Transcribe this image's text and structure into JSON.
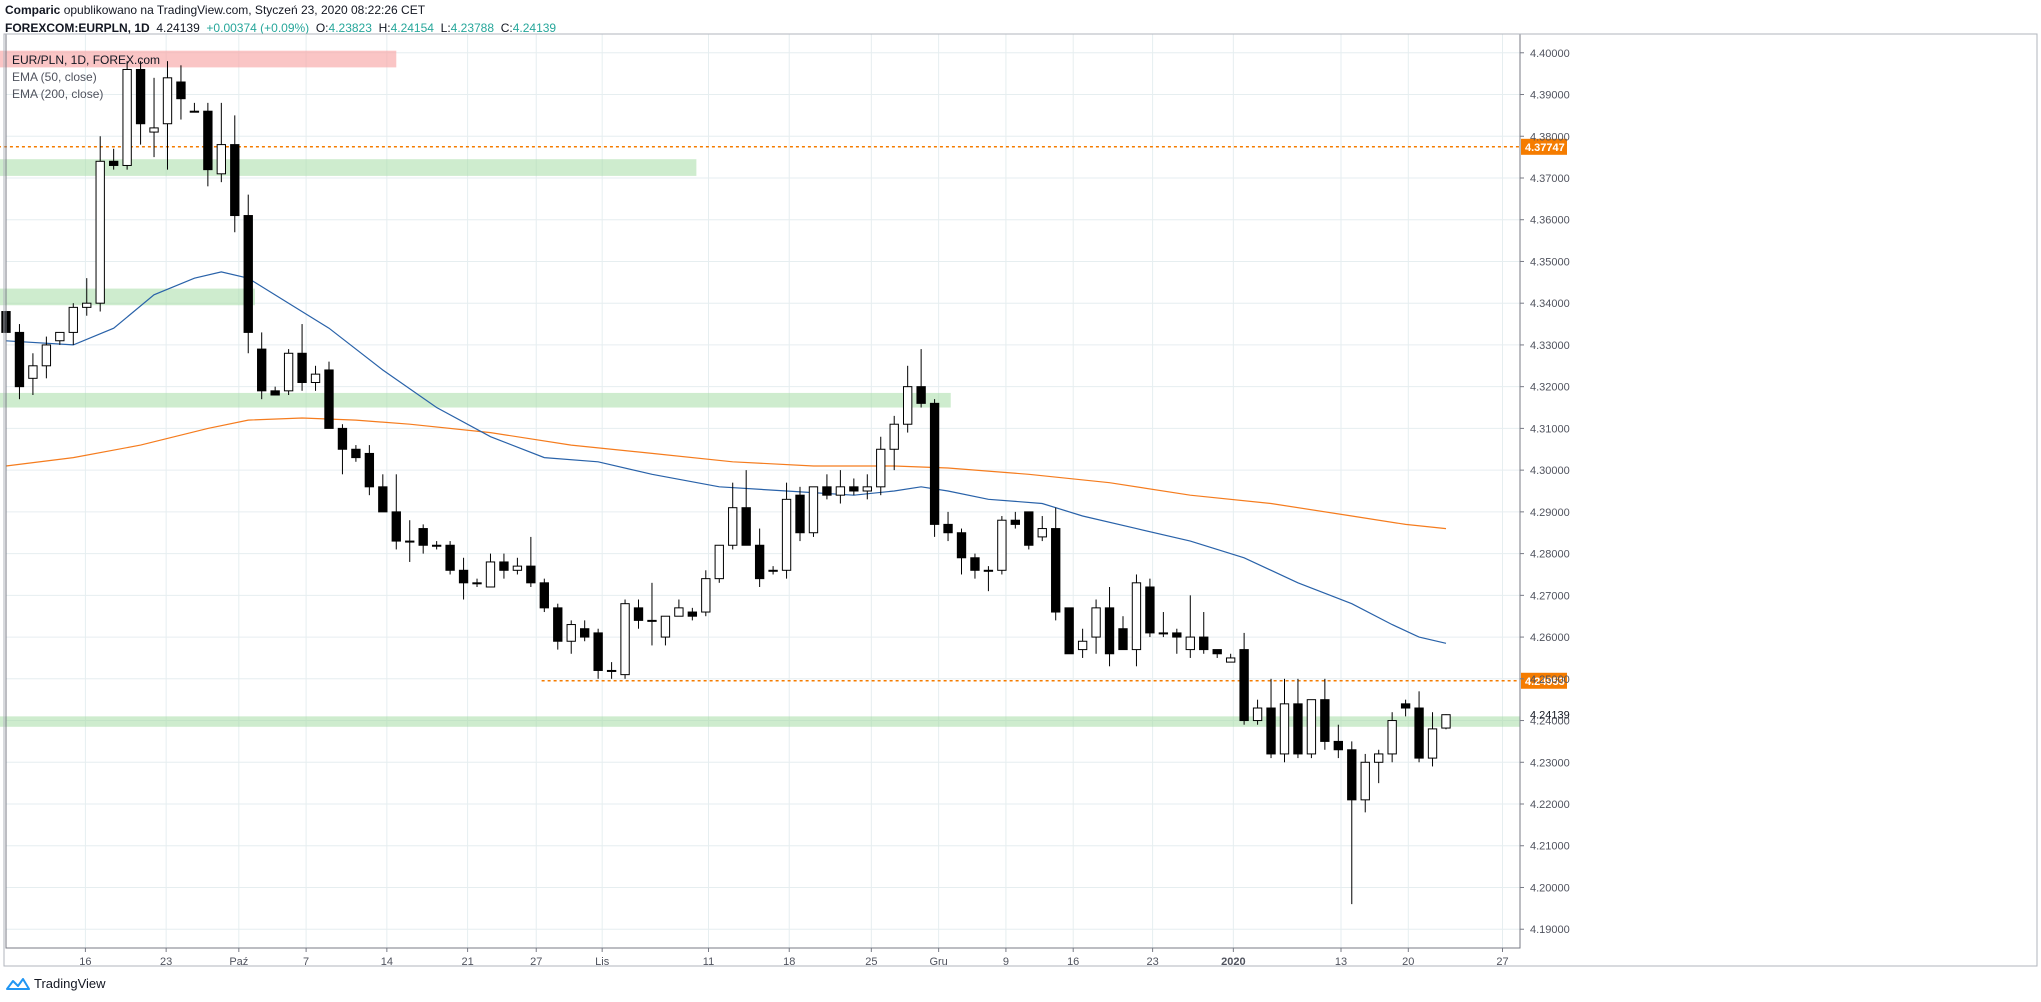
{
  "header": {
    "author": "Comparic",
    "published_text": "opublikowano na TradingView.com, Styczeń 23, 2020 08:22:26 CET",
    "symbol": "FOREXCOM:EURPLN, 1D",
    "last": "4.24139",
    "change": "+0.00374 (+0.09%)",
    "o_label": "O:",
    "o_value": "4.23823",
    "h_label": "H:",
    "h_value": "4.24154",
    "l_label": "L:",
    "l_value": "4.23788",
    "c_label": "C:",
    "c_value": "4.24139"
  },
  "legend": {
    "title": "EUR/PLN, 1D, FOREX.com",
    "ema50": "EMA (50, close)",
    "ema200": "EMA (200, close)"
  },
  "branding": {
    "label": "TradingView"
  },
  "colors": {
    "up_body": "#ffffff",
    "down_body": "#000000",
    "wick": "#000000",
    "ema50": "#2962a9",
    "ema200": "#f57c1e",
    "zone_green": "#a5dca5",
    "zone_red": "#f7a6a6",
    "level_line": "#f57c00",
    "grid": "#e6eef0",
    "axis_text": "#50535e"
  },
  "chart_data": {
    "type": "candlestick",
    "title": "EUR/PLN, 1D, FOREX.com",
    "x_ticks": [
      {
        "label": "16",
        "x": 5.9
      },
      {
        "label": "23",
        "x": 11.9
      },
      {
        "label": "Paź",
        "x": 17.3
      },
      {
        "label": "7",
        "x": 22.3
      },
      {
        "label": "14",
        "x": 28.3
      },
      {
        "label": "21",
        "x": 34.3
      },
      {
        "label": "27",
        "x": 39.4
      },
      {
        "label": "Lis",
        "x": 44.3
      },
      {
        "label": "11",
        "x": 52.2
      },
      {
        "label": "18",
        "x": 58.2
      },
      {
        "label": "25",
        "x": 64.3
      },
      {
        "label": "Gru",
        "x": 69.3
      },
      {
        "label": "9",
        "x": 74.3
      },
      {
        "label": "16",
        "x": 79.3
      },
      {
        "label": "23",
        "x": 85.2
      },
      {
        "label": "2020",
        "x": 91.2
      },
      {
        "label": "13",
        "x": 99.2
      },
      {
        "label": "20",
        "x": 104.2
      },
      {
        "label": "27",
        "x": 111.2
      }
    ],
    "x_range": [
      0,
      112.5
    ],
    "y_ticks": [
      "4.40000",
      "4.39000",
      "4.38000",
      "4.37000",
      "4.36000",
      "4.35000",
      "4.34000",
      "4.33000",
      "4.32000",
      "4.31000",
      "4.30000",
      "4.29000",
      "4.28000",
      "4.27000",
      "4.26000",
      "4.25000",
      "4.24000",
      "4.23000",
      "4.22000",
      "4.21000",
      "4.20000",
      "4.19000"
    ],
    "ylim": [
      4.1855,
      4.4045
    ],
    "candles": [
      [
        0.0,
        4.338,
        4.35,
        4.326,
        4.333
      ],
      [
        1.0,
        4.333,
        4.335,
        4.317,
        4.32
      ],
      [
        2.0,
        4.322,
        4.328,
        4.318,
        4.325
      ],
      [
        3.0,
        4.325,
        4.332,
        4.322,
        4.33
      ],
      [
        4.0,
        4.331,
        4.333,
        4.33,
        4.333
      ],
      [
        5.0,
        4.333,
        4.34,
        4.33,
        4.339
      ],
      [
        6.0,
        4.339,
        4.346,
        4.337,
        4.34
      ],
      [
        7.0,
        4.34,
        4.38,
        4.338,
        4.374
      ],
      [
        8.0,
        4.374,
        4.377,
        4.372,
        4.373
      ],
      [
        9.0,
        4.373,
        4.398,
        4.372,
        4.396
      ],
      [
        10.0,
        4.396,
        4.398,
        4.378,
        4.383
      ],
      [
        11.0,
        4.381,
        4.394,
        4.375,
        4.382
      ],
      [
        12.0,
        4.383,
        4.398,
        4.372,
        4.394
      ],
      [
        13.0,
        4.393,
        4.397,
        4.384,
        4.389
      ],
      [
        14.0,
        4.386,
        4.388,
        4.386,
        4.386
      ],
      [
        15.0,
        4.386,
        4.388,
        4.368,
        4.372
      ],
      [
        16.0,
        4.371,
        4.388,
        4.369,
        4.378
      ],
      [
        17.0,
        4.378,
        4.385,
        4.357,
        4.361
      ],
      [
        18.0,
        4.361,
        4.366,
        4.328,
        4.333
      ],
      [
        19.0,
        4.329,
        4.333,
        4.317,
        4.319
      ],
      [
        20.0,
        4.319,
        4.32,
        4.318,
        4.318
      ],
      [
        21.0,
        4.319,
        4.329,
        4.318,
        4.328
      ],
      [
        22.0,
        4.328,
        4.335,
        4.319,
        4.321
      ],
      [
        23.0,
        4.321,
        4.325,
        4.319,
        4.323
      ],
      [
        24.0,
        4.324,
        4.326,
        4.31,
        4.31
      ],
      [
        25.0,
        4.31,
        4.311,
        4.299,
        4.305
      ],
      [
        26.0,
        4.305,
        4.306,
        4.302,
        4.303
      ],
      [
        27.0,
        4.304,
        4.306,
        4.294,
        4.296
      ],
      [
        28.0,
        4.296,
        4.299,
        4.29,
        4.29
      ],
      [
        29.0,
        4.29,
        4.299,
        4.281,
        4.283
      ],
      [
        30.0,
        4.283,
        4.288,
        4.278,
        4.283
      ],
      [
        31.0,
        4.286,
        4.287,
        4.28,
        4.282
      ],
      [
        32.0,
        4.282,
        4.283,
        4.281,
        4.282
      ],
      [
        33.0,
        4.282,
        4.283,
        4.275,
        4.276
      ],
      [
        34.0,
        4.276,
        4.279,
        4.269,
        4.273
      ],
      [
        35.0,
        4.273,
        4.274,
        4.272,
        4.273
      ],
      [
        36.0,
        4.272,
        4.28,
        4.272,
        4.278
      ],
      [
        37.0,
        4.278,
        4.28,
        4.274,
        4.276
      ],
      [
        38.0,
        4.276,
        4.279,
        4.275,
        4.277
      ],
      [
        39.0,
        4.277,
        4.284,
        4.272,
        4.273
      ],
      [
        40.0,
        4.273,
        4.274,
        4.266,
        4.267
      ],
      [
        41.0,
        4.267,
        4.268,
        4.257,
        4.259
      ],
      [
        42.0,
        4.259,
        4.264,
        4.256,
        4.263
      ],
      [
        43.0,
        4.262,
        4.264,
        4.259,
        4.26
      ],
      [
        44.0,
        4.261,
        4.262,
        4.25,
        4.252
      ],
      [
        45.0,
        4.252,
        4.254,
        4.25,
        4.252
      ],
      [
        46.0,
        4.251,
        4.269,
        4.25,
        4.268
      ],
      [
        47.0,
        4.267,
        4.269,
        4.262,
        4.264
      ],
      [
        48.0,
        4.264,
        4.273,
        4.258,
        4.264
      ],
      [
        49.0,
        4.26,
        4.265,
        4.258,
        4.265
      ],
      [
        50.0,
        4.265,
        4.269,
        4.265,
        4.267
      ],
      [
        51.0,
        4.266,
        4.267,
        4.264,
        4.265
      ],
      [
        52.0,
        4.266,
        4.276,
        4.265,
        4.274
      ],
      [
        53.0,
        4.274,
        4.282,
        4.273,
        4.282
      ],
      [
        54.0,
        4.282,
        4.297,
        4.281,
        4.291
      ],
      [
        55.0,
        4.291,
        4.3,
        4.282,
        4.282
      ],
      [
        56.0,
        4.282,
        4.286,
        4.272,
        4.274
      ],
      [
        57.0,
        4.276,
        4.277,
        4.275,
        4.276
      ],
      [
        58.0,
        4.276,
        4.297,
        4.274,
        4.293
      ],
      [
        59.0,
        4.294,
        4.296,
        4.283,
        4.285
      ],
      [
        60.0,
        4.285,
        4.296,
        4.284,
        4.296
      ],
      [
        61.0,
        4.296,
        4.299,
        4.293,
        4.294
      ],
      [
        62.0,
        4.294,
        4.3,
        4.292,
        4.296
      ],
      [
        63.0,
        4.296,
        4.298,
        4.294,
        4.295
      ],
      [
        64.0,
        4.295,
        4.299,
        4.293,
        4.296
      ],
      [
        65.0,
        4.296,
        4.308,
        4.294,
        4.305
      ],
      [
        66.0,
        4.305,
        4.313,
        4.3,
        4.311
      ],
      [
        67.0,
        4.311,
        4.325,
        4.309,
        4.32
      ],
      [
        68.0,
        4.32,
        4.329,
        4.315,
        4.316
      ],
      [
        69.0,
        4.316,
        4.317,
        4.284,
        4.287
      ],
      [
        70.0,
        4.287,
        4.29,
        4.283,
        4.285
      ],
      [
        71.0,
        4.285,
        4.286,
        4.275,
        4.279
      ],
      [
        72.0,
        4.279,
        4.28,
        4.274,
        4.276
      ],
      [
        73.0,
        4.276,
        4.277,
        4.271,
        4.276
      ],
      [
        74.0,
        4.276,
        4.289,
        4.275,
        4.288
      ],
      [
        75.0,
        4.288,
        4.29,
        4.286,
        4.287
      ],
      [
        76.0,
        4.29,
        4.29,
        4.281,
        4.282
      ],
      [
        77.0,
        4.284,
        4.289,
        4.283,
        4.286
      ],
      [
        78.0,
        4.286,
        4.291,
        4.264,
        4.266
      ],
      [
        79.0,
        4.267,
        4.267,
        4.256,
        4.256
      ],
      [
        80.0,
        4.257,
        4.262,
        4.255,
        4.259
      ],
      [
        81.0,
        4.26,
        4.269,
        4.256,
        4.267
      ],
      [
        82.0,
        4.267,
        4.272,
        4.253,
        4.256
      ],
      [
        83.0,
        4.262,
        4.265,
        4.257,
        4.257
      ],
      [
        84.0,
        4.257,
        4.275,
        4.253,
        4.273
      ],
      [
        85.0,
        4.272,
        4.274,
        4.26,
        4.261
      ],
      [
        86.0,
        4.261,
        4.266,
        4.26,
        4.261
      ],
      [
        87.0,
        4.261,
        4.262,
        4.256,
        4.26
      ],
      [
        88.0,
        4.257,
        4.27,
        4.255,
        4.26
      ],
      [
        89.0,
        4.26,
        4.266,
        4.256,
        4.257
      ],
      [
        90.0,
        4.257,
        4.257,
        4.255,
        4.256
      ],
      [
        91.0,
        4.254,
        4.256,
        4.254,
        4.255
      ],
      [
        92.0,
        4.257,
        4.261,
        4.239,
        4.24
      ],
      [
        93.0,
        4.24,
        4.245,
        4.239,
        4.243
      ],
      [
        94.0,
        4.243,
        4.25,
        4.231,
        4.232
      ],
      [
        95.0,
        4.232,
        4.25,
        4.23,
        4.244
      ],
      [
        96.0,
        4.244,
        4.25,
        4.231,
        4.232
      ],
      [
        97.0,
        4.232,
        4.245,
        4.231,
        4.245
      ],
      [
        98.0,
        4.245,
        4.25,
        4.233,
        4.235
      ],
      [
        99.0,
        4.235,
        4.239,
        4.231,
        4.233
      ],
      [
        100.0,
        4.233,
        4.235,
        4.196,
        4.221
      ],
      [
        101.0,
        4.221,
        4.232,
        4.218,
        4.23
      ],
      [
        102.0,
        4.23,
        4.233,
        4.225,
        4.232
      ],
      [
        103.0,
        4.232,
        4.242,
        4.23,
        4.24
      ],
      [
        104.0,
        4.244,
        4.245,
        4.241,
        4.243
      ],
      [
        105.0,
        4.243,
        4.247,
        4.23,
        4.231
      ],
      [
        106.0,
        4.231,
        4.242,
        4.229,
        4.238
      ],
      [
        107.0,
        4.2382,
        4.2415,
        4.2379,
        4.2414
      ]
    ],
    "ema50": [
      [
        0,
        4.331
      ],
      [
        5,
        4.33
      ],
      [
        8,
        4.334
      ],
      [
        11,
        4.342
      ],
      [
        14,
        4.346
      ],
      [
        16,
        4.3475
      ],
      [
        18,
        4.346
      ],
      [
        21,
        4.34
      ],
      [
        24,
        4.334
      ],
      [
        28,
        4.324
      ],
      [
        32,
        4.315
      ],
      [
        36,
        4.308
      ],
      [
        40,
        4.303
      ],
      [
        44,
        4.302
      ],
      [
        48,
        4.299
      ],
      [
        53,
        4.296
      ],
      [
        58,
        4.295
      ],
      [
        63,
        4.294
      ],
      [
        66,
        4.295
      ],
      [
        68,
        4.296
      ],
      [
        70,
        4.295
      ],
      [
        73,
        4.293
      ],
      [
        77,
        4.292
      ],
      [
        80,
        4.289
      ],
      [
        84,
        4.286
      ],
      [
        88,
        4.283
      ],
      [
        92,
        4.279
      ],
      [
        96,
        4.273
      ],
      [
        100,
        4.268
      ],
      [
        103,
        4.263
      ],
      [
        105,
        4.26
      ],
      [
        107,
        4.2585
      ]
    ],
    "ema200": [
      [
        0,
        4.301
      ],
      [
        5,
        4.303
      ],
      [
        10,
        4.306
      ],
      [
        15,
        4.31
      ],
      [
        18,
        4.312
      ],
      [
        22,
        4.3125
      ],
      [
        26,
        4.312
      ],
      [
        30,
        4.311
      ],
      [
        36,
        4.309
      ],
      [
        42,
        4.306
      ],
      [
        48,
        4.304
      ],
      [
        54,
        4.302
      ],
      [
        60,
        4.301
      ],
      [
        66,
        4.301
      ],
      [
        70,
        4.3005
      ],
      [
        76,
        4.299
      ],
      [
        82,
        4.297
      ],
      [
        88,
        4.294
      ],
      [
        94,
        4.292
      ],
      [
        100,
        4.289
      ],
      [
        104,
        4.287
      ],
      [
        107,
        4.286
      ]
    ],
    "zones": [
      {
        "color": "red",
        "x0": -0.6,
        "x1": 29.0,
        "y0": 4.3965,
        "y1": 4.4005
      },
      {
        "color": "green",
        "x0": -0.6,
        "x1": 51.3,
        "y0": 4.3705,
        "y1": 4.3745
      },
      {
        "color": "green",
        "x0": -0.6,
        "x1": 18.5,
        "y0": 4.3395,
        "y1": 4.3435
      },
      {
        "color": "green",
        "x0": -0.6,
        "x1": 70.2,
        "y0": 4.315,
        "y1": 4.3185
      },
      {
        "color": "green",
        "x0": -0.6,
        "x1": 112.5,
        "y0": 4.2385,
        "y1": 4.241
      }
    ],
    "levels": [
      {
        "x0": -0.6,
        "value": "4.37747",
        "y": 4.37747
      },
      {
        "x0": 39.8,
        "value": "4.24953",
        "y": 4.24953
      }
    ],
    "last_price_label": "4.24139"
  }
}
